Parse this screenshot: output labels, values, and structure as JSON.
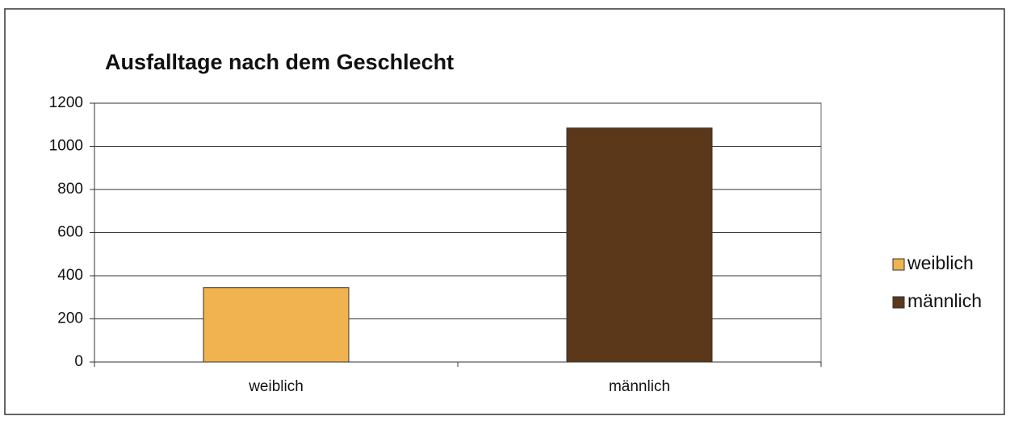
{
  "chart_data": {
    "type": "bar",
    "title": "Ausfalltage nach dem Geschlecht",
    "categories": [
      "weiblich",
      "männlich"
    ],
    "values": [
      345,
      1085
    ],
    "colors": [
      "#f0b34f",
      "#5a3819"
    ],
    "ylim": [
      0,
      1200
    ],
    "yticks": [
      0,
      200,
      400,
      600,
      800,
      1000,
      1200
    ],
    "grid": true,
    "legend": "right"
  }
}
